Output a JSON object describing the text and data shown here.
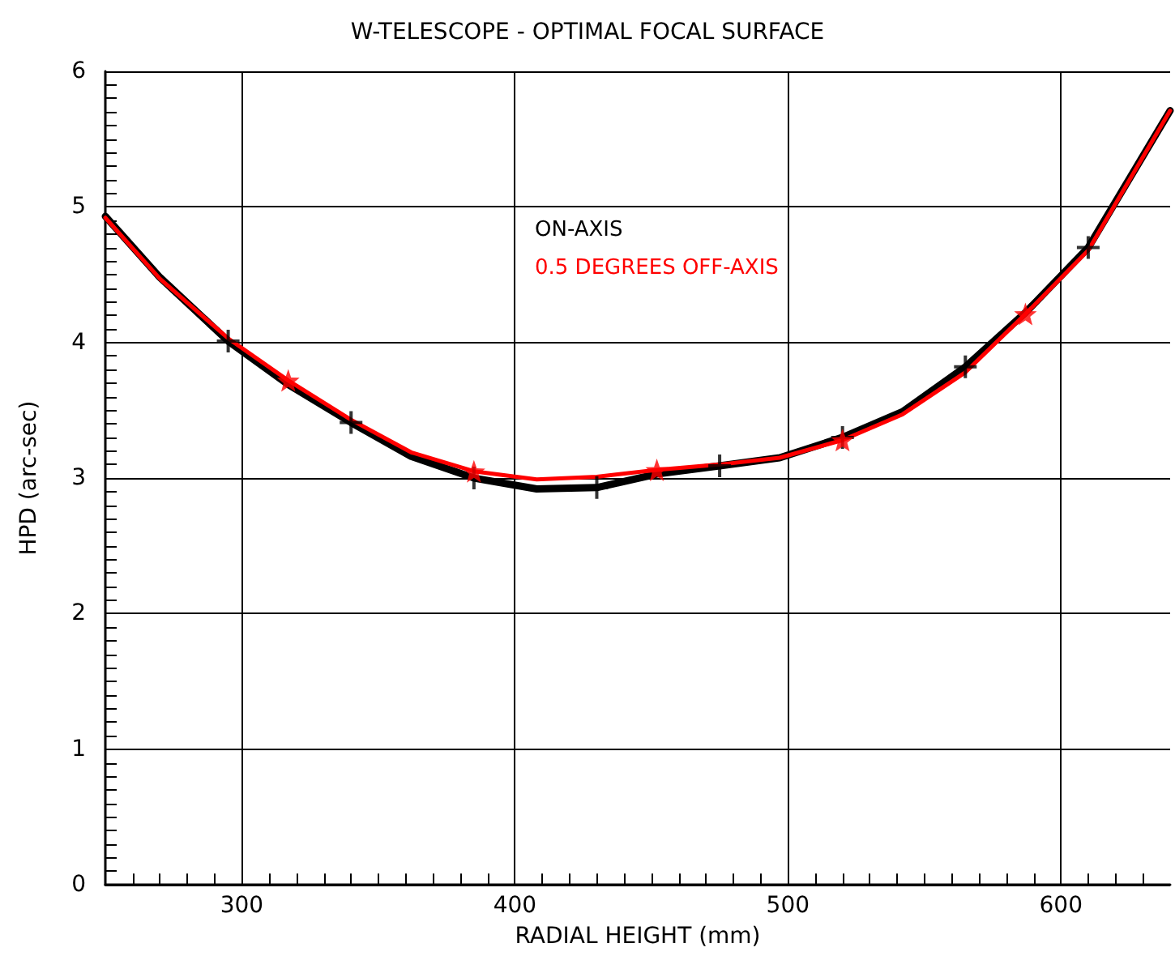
{
  "chart_data": {
    "type": "line",
    "title": "W-TELESCOPE - OPTIMAL FOCAL SURFACE",
    "xlabel": "RADIAL HEIGHT (mm)",
    "ylabel": "HPD (arc-sec)",
    "xlim": [
      250,
      640
    ],
    "xticks": [
      300,
      400,
      500,
      600
    ],
    "ylim": [
      0,
      6
    ],
    "yticks": [
      0,
      1,
      2,
      3,
      4,
      5,
      6
    ],
    "grid": true,
    "legend": "top",
    "series": [
      {
        "name": "ON-AXIS",
        "color": "#000000",
        "marker": "none",
        "x": [
          250,
          270,
          295,
          317,
          340,
          362,
          385,
          408,
          430,
          452,
          475,
          497,
          520,
          542,
          565,
          587,
          610,
          640
        ],
        "values": [
          4.93,
          4.48,
          4.01,
          3.69,
          3.41,
          3.16,
          3.0,
          2.92,
          2.93,
          3.03,
          3.09,
          3.15,
          3.3,
          3.49,
          3.82,
          4.22,
          4.7,
          5.71
        ]
      },
      {
        "type": "scatter",
        "color": "#000000",
        "marker": "cross",
        "x": [
          295,
          340,
          385,
          430,
          475,
          520,
          565,
          610
        ],
        "values": [
          4.01,
          3.41,
          3.0,
          2.93,
          3.09,
          3.3,
          3.82,
          4.7
        ]
      },
      {
        "name": "0.5 DEGREES OFF-AXIS",
        "color": "#ff0000",
        "marker": "none",
        "x": [
          250,
          270,
          295,
          317,
          340,
          362,
          385,
          408,
          430,
          452,
          475,
          497,
          520,
          542,
          565,
          587,
          610,
          640
        ],
        "values": [
          4.92,
          4.47,
          4.03,
          3.72,
          3.43,
          3.19,
          3.05,
          2.99,
          3.01,
          3.06,
          3.1,
          3.15,
          3.28,
          3.47,
          3.78,
          4.21,
          4.68,
          5.71
        ]
      },
      {
        "type": "scatter",
        "color": "#ff0000",
        "marker": "star",
        "x": [
          317,
          385,
          452,
          520,
          587
        ],
        "values": [
          3.72,
          3.05,
          3.06,
          3.28,
          4.21
        ]
      }
    ]
  }
}
